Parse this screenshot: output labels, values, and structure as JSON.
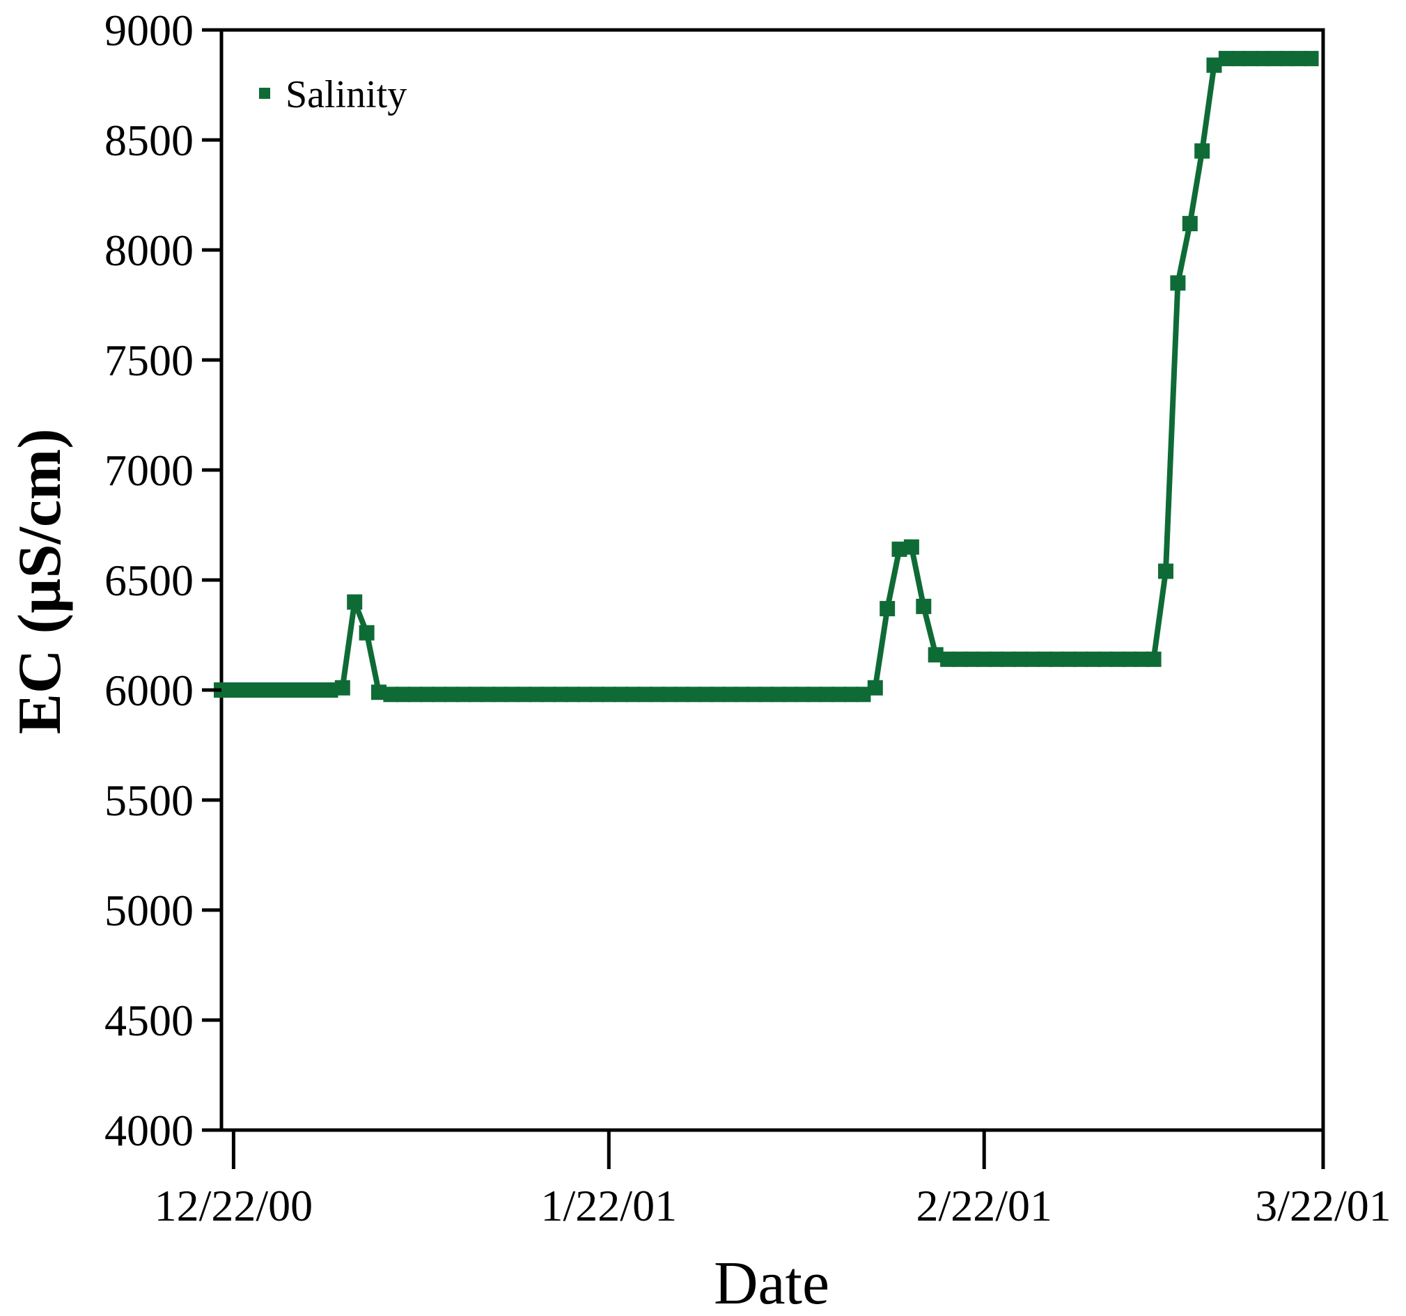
{
  "chart_data": {
    "type": "line",
    "xlabel": "Date",
    "ylabel": "EC (µS/cm)",
    "ylim": [
      4000,
      9000
    ],
    "yticks": [
      4000,
      4500,
      5000,
      5500,
      6000,
      6500,
      7000,
      7500,
      8000,
      8500,
      9000
    ],
    "xlim": [
      "2000-12-21",
      "2001-03-22"
    ],
    "xticks": [
      {
        "date": "2000-12-22",
        "label": "12/22/00"
      },
      {
        "date": "2001-01-22",
        "label": "1/22/01"
      },
      {
        "date": "2001-02-22",
        "label": "2/22/01"
      },
      {
        "date": "2001-03-22",
        "label": "3/22/01"
      }
    ],
    "legend": {
      "position": "top-left"
    },
    "grid": false,
    "series": [
      {
        "name": "Salinity",
        "color": "#0f6b36",
        "marker": "square",
        "x": [
          "2000-12-21",
          "2000-12-22",
          "2000-12-23",
          "2000-12-24",
          "2000-12-25",
          "2000-12-26",
          "2000-12-27",
          "2000-12-28",
          "2000-12-29",
          "2000-12-30",
          "2000-12-31",
          "2001-01-01",
          "2001-01-02",
          "2001-01-03",
          "2001-01-04",
          "2001-01-05",
          "2001-01-06",
          "2001-01-07",
          "2001-01-08",
          "2001-01-09",
          "2001-01-10",
          "2001-01-11",
          "2001-01-12",
          "2001-01-13",
          "2001-01-14",
          "2001-01-15",
          "2001-01-16",
          "2001-01-17",
          "2001-01-18",
          "2001-01-19",
          "2001-01-20",
          "2001-01-21",
          "2001-01-22",
          "2001-01-23",
          "2001-01-24",
          "2001-01-25",
          "2001-01-26",
          "2001-01-27",
          "2001-01-28",
          "2001-01-29",
          "2001-01-30",
          "2001-01-31",
          "2001-02-01",
          "2001-02-02",
          "2001-02-03",
          "2001-02-04",
          "2001-02-05",
          "2001-02-06",
          "2001-02-07",
          "2001-02-08",
          "2001-02-09",
          "2001-02-10",
          "2001-02-11",
          "2001-02-12",
          "2001-02-13",
          "2001-02-14",
          "2001-02-15",
          "2001-02-16",
          "2001-02-17",
          "2001-02-18",
          "2001-02-19",
          "2001-02-20",
          "2001-02-21",
          "2001-02-22",
          "2001-02-23",
          "2001-02-24",
          "2001-02-25",
          "2001-02-26",
          "2001-02-27",
          "2001-02-28",
          "2001-03-01",
          "2001-03-02",
          "2001-03-03",
          "2001-03-04",
          "2001-03-05",
          "2001-03-06",
          "2001-03-07",
          "2001-03-08",
          "2001-03-09",
          "2001-03-10",
          "2001-03-11",
          "2001-03-12",
          "2001-03-13",
          "2001-03-14",
          "2001-03-15",
          "2001-03-16",
          "2001-03-17",
          "2001-03-18",
          "2001-03-19",
          "2001-03-20",
          "2001-03-21"
        ],
        "y": [
          6000,
          6000,
          6000,
          6000,
          6000,
          6000,
          6000,
          6000,
          6000,
          6000,
          6010,
          6400,
          6260,
          5990,
          5980,
          5980,
          5980,
          5980,
          5980,
          5980,
          5980,
          5980,
          5980,
          5980,
          5980,
          5980,
          5980,
          5980,
          5980,
          5980,
          5980,
          5980,
          5980,
          5980,
          5980,
          5980,
          5980,
          5980,
          5980,
          5980,
          5980,
          5980,
          5980,
          5980,
          5980,
          5980,
          5980,
          5980,
          5980,
          5980,
          5980,
          5980,
          5980,
          5980,
          6010,
          6370,
          6640,
          6650,
          6380,
          6160,
          6140,
          6140,
          6140,
          6140,
          6140,
          6140,
          6140,
          6140,
          6140,
          6140,
          6140,
          6140,
          6140,
          6140,
          6140,
          6140,
          6140,
          6140,
          6540,
          7850,
          8120,
          8450,
          8840,
          8870,
          8870,
          8870,
          8870,
          8870,
          8870,
          8870,
          8870
        ]
      }
    ]
  }
}
